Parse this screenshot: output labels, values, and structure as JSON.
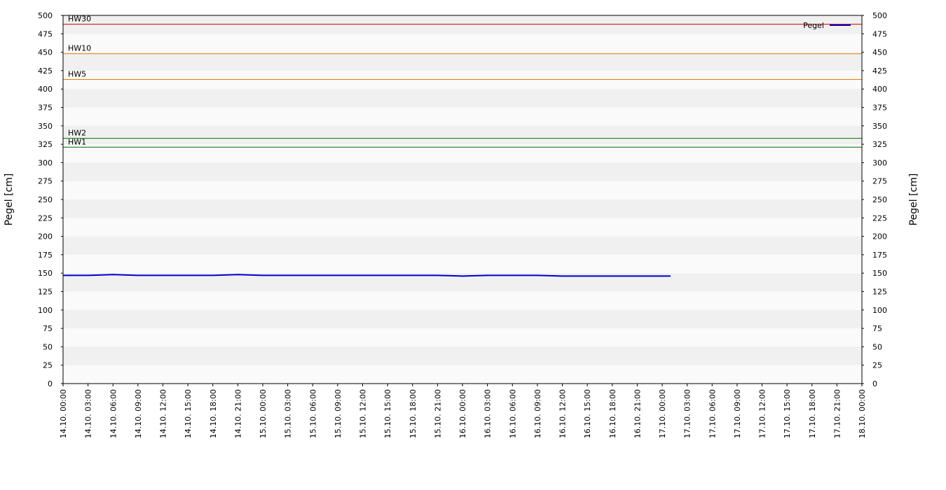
{
  "chart_data": {
    "type": "line",
    "y_label": "Pegel [cm]",
    "y2_label": "Pegel [cm]",
    "x": [
      "14.10. 00:00",
      "14.10. 03:00",
      "14.10. 06:00",
      "14.10. 09:00",
      "14.10. 12:00",
      "14.10. 15:00",
      "14.10. 18:00",
      "14.10. 21:00",
      "15.10. 00:00",
      "15.10. 03:00",
      "15.10. 06:00",
      "15.10. 09:00",
      "15.10. 12:00",
      "15.10. 15:00",
      "15.10. 18:00",
      "15.10. 21:00",
      "16.10. 00:00",
      "16.10. 03:00",
      "16.10. 06:00",
      "16.10. 09:00",
      "16.10. 12:00",
      "16.10. 15:00",
      "16.10. 18:00",
      "16.10. 21:00",
      "17.10. 00:00",
      "17.10. 01:00"
    ],
    "series": [
      {
        "name": "Pegel",
        "color": "#0000cc",
        "values": [
          147,
          147,
          148,
          147,
          147,
          147,
          147,
          148,
          147,
          147,
          147,
          147,
          147,
          147,
          147,
          147,
          146,
          147,
          147,
          147,
          146,
          146,
          146,
          146,
          146,
          146
        ]
      }
    ],
    "xlim": [
      "14.10. 00:00",
      "18.10. 00:00"
    ],
    "xticks": [
      "14.10. 00:00",
      "14.10. 03:00",
      "14.10. 06:00",
      "14.10. 09:00",
      "14.10. 12:00",
      "14.10. 15:00",
      "14.10. 18:00",
      "14.10. 21:00",
      "15.10. 00:00",
      "15.10. 03:00",
      "15.10. 06:00",
      "15.10. 09:00",
      "15.10. 12:00",
      "15.10. 15:00",
      "15.10. 18:00",
      "15.10. 21:00",
      "16.10. 00:00",
      "16.10. 03:00",
      "16.10. 06:00",
      "16.10. 09:00",
      "16.10. 12:00",
      "16.10. 15:00",
      "16.10. 18:00",
      "16.10. 21:00",
      "17.10. 00:00",
      "17.10. 03:00",
      "17.10. 06:00",
      "17.10. 09:00",
      "17.10. 12:00",
      "17.10. 15:00",
      "17.10. 18:00",
      "17.10. 21:00",
      "18.10. 00:00"
    ],
    "ylim": [
      0,
      500
    ],
    "yticks": [
      0,
      25,
      50,
      75,
      100,
      125,
      150,
      175,
      200,
      225,
      250,
      275,
      300,
      325,
      350,
      375,
      400,
      425,
      450,
      475,
      500
    ],
    "y2lim": [
      0,
      500
    ],
    "y2ticks": [
      0,
      25,
      50,
      75,
      100,
      125,
      150,
      175,
      200,
      225,
      250,
      275,
      300,
      325,
      350,
      375,
      400,
      425,
      450,
      475,
      500
    ],
    "thresholds": [
      {
        "label": "HW30",
        "value": 488,
        "color": "#cc0000"
      },
      {
        "label": "HW10",
        "value": 448,
        "color": "#e08000"
      },
      {
        "label": "HW5",
        "value": 413,
        "color": "#e08000"
      },
      {
        "label": "HW2",
        "value": 333,
        "color": "#007000"
      },
      {
        "label": "HW1",
        "value": 321,
        "color": "#007000"
      }
    ],
    "legend": "top-right",
    "banded_background": true
  }
}
